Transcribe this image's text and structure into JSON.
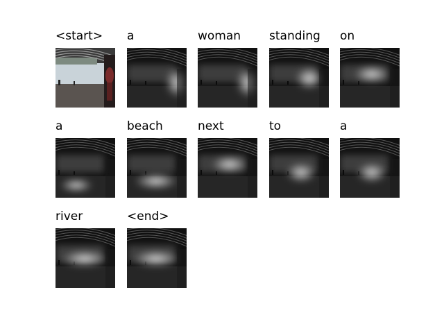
{
  "caption_tokens": [
    {
      "word": "<start>",
      "view": "photo"
    },
    {
      "word": "a",
      "view": "attention",
      "focus": "right"
    },
    {
      "word": "woman",
      "view": "attention",
      "focus": "right"
    },
    {
      "word": "standing",
      "view": "attention",
      "focus": "center-right"
    },
    {
      "word": "on",
      "view": "attention",
      "focus": "center"
    },
    {
      "word": "a",
      "view": "attention",
      "focus": "low-left"
    },
    {
      "word": "beach",
      "view": "attention",
      "focus": "low-wide"
    },
    {
      "word": "next",
      "view": "attention",
      "focus": "center"
    },
    {
      "word": "to",
      "view": "attention",
      "focus": "center-low"
    },
    {
      "word": "a",
      "view": "attention",
      "focus": "center-low"
    },
    {
      "word": "river",
      "view": "attention",
      "focus": "center-wide"
    },
    {
      "word": "<end>",
      "view": "attention",
      "focus": "center-wide"
    }
  ],
  "colors": {
    "background": "#ffffff",
    "text": "#000000",
    "water": "#c9d3d9",
    "bridge": "#3a3a3a",
    "ground": "#5a5450",
    "figure": "#7a2b2b"
  }
}
